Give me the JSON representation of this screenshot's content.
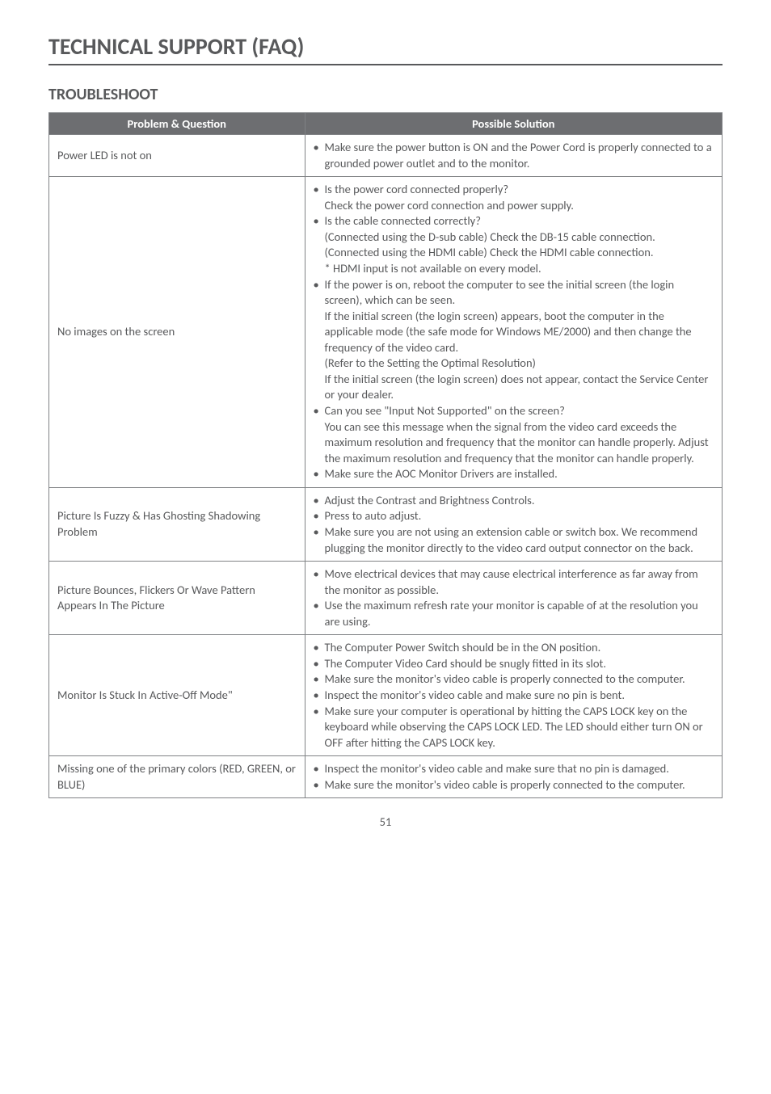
{
  "page": {
    "title": "TECHNICAL SUPPORT (FAQ)",
    "subtitle": "TROUBLESHOOT",
    "page_number": "51"
  },
  "table": {
    "headers": {
      "problem": "Problem & Question",
      "solution": "Possible Solution"
    },
    "rows": [
      {
        "question": "Power LED is not on",
        "bullets": [
          "Make sure the power button is ON and the Power Cord is properly connected to a grounded power outlet and to the monitor."
        ]
      },
      {
        "question": "No images on the screen",
        "bullets": [
          "Is the power cord connected properly?",
          "_Check the power cord connection and power supply.",
          "Is the cable connected correctly?",
          "_(Connected using the D-sub cable) Check the DB-15 cable connection.",
          "_(Connected using the HDMI cable) Check the HDMI cable connection.",
          "_* HDMI input is not available on every model.",
          "If the power is on, reboot the computer to see the initial screen (the login screen), which can be seen.",
          "_If the initial screen (the login screen) appears, boot the computer in the applicable mode (the safe mode for Windows ME/2000) and then change the frequency of the video card.",
          "_(Refer to the Setting the Optimal Resolution)",
          "_If the initial screen (the login screen) does not appear, contact the Service Center or your dealer.",
          "Can you see \"Input Not Supported\" on the screen?",
          "_You can see this message when the signal from the video card exceeds the maximum resolution and frequency that the monitor can handle properly. Adjust the maximum resolution and frequency that the monitor can handle properly.",
          "Make sure the AOC Monitor Drivers are installed."
        ]
      },
      {
        "question": "Picture Is Fuzzy & Has Ghosting Shadowing Problem",
        "bullets": [
          "Adjust the Contrast and Brightness Controls.",
          "Press to auto adjust.",
          "Make sure you are not using an extension cable or switch box. We recommend plugging the monitor directly to the video card output connector on the back."
        ]
      },
      {
        "question": "Picture Bounces, Flickers Or Wave Pattern Appears In The Picture",
        "bullets": [
          "Move electrical devices that may cause electrical interference as far away from the monitor as possible.",
          "Use the maximum refresh rate your monitor is capable of at the resolution you are using."
        ]
      },
      {
        "question": "Monitor Is Stuck In Active-Off Mode\"",
        "bullets": [
          "The Computer Power Switch should be in the ON position.",
          "The Computer Video Card should be snugly fitted in its slot.",
          "Make sure the monitor's video cable is properly connected to the computer.",
          "Inspect the monitor's video cable and make sure no pin is bent.",
          "Make sure your computer is operational by hitting the CAPS LOCK key on the keyboard while observing the CAPS LOCK LED. The LED should either turn ON or OFF after hitting the CAPS LOCK key."
        ]
      },
      {
        "question": "Missing one of the primary colors (RED, GREEN, or BLUE)",
        "bullets": [
          "Inspect the monitor's video cable and make sure that no pin is damaged.",
          "Make sure the monitor's video cable is properly connected to the computer."
        ]
      }
    ]
  },
  "styles": {
    "title_fontsize": 28,
    "subtitle_fontsize": 20,
    "body_fontsize": 14.5,
    "header_bg": "#6d6e71",
    "header_color": "#ffffff",
    "text_color": "#58595b",
    "border_color": "#808285"
  }
}
